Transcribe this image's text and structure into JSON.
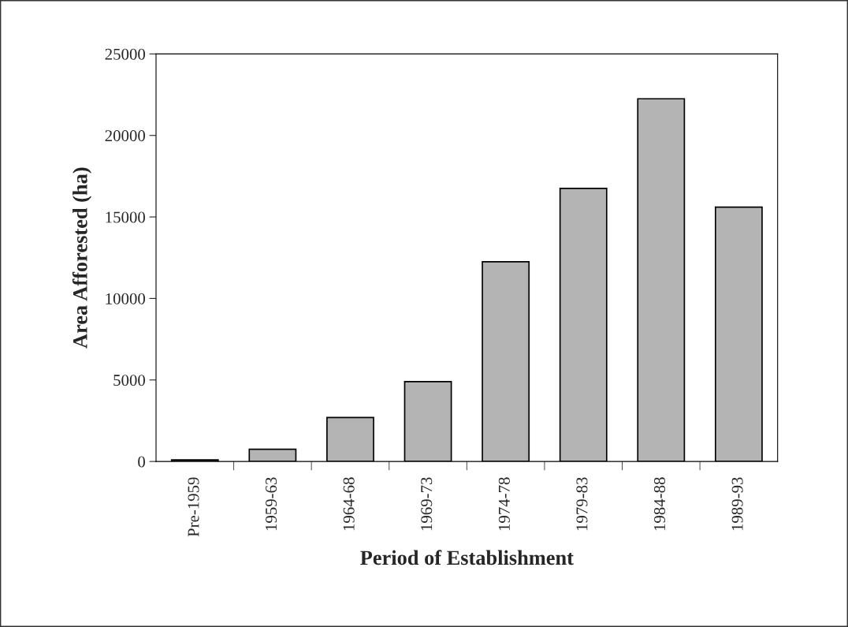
{
  "chart_data": {
    "type": "bar",
    "xlabel": "Period of Establishment",
    "ylabel": "Area Afforested (ha)",
    "categories": [
      "Pre-1959",
      "1959-63",
      "1964-68",
      "1969-73",
      "1974-78",
      "1979-83",
      "1984-88",
      "1989-93"
    ],
    "values": [
      100,
      750,
      2700,
      4900,
      12250,
      16750,
      22250,
      15600
    ],
    "color": "#b4b4b4",
    "ylim": [
      0,
      25000
    ],
    "yticks": [
      0,
      5000,
      10000,
      15000,
      20000,
      25000
    ],
    "grid": false
  }
}
